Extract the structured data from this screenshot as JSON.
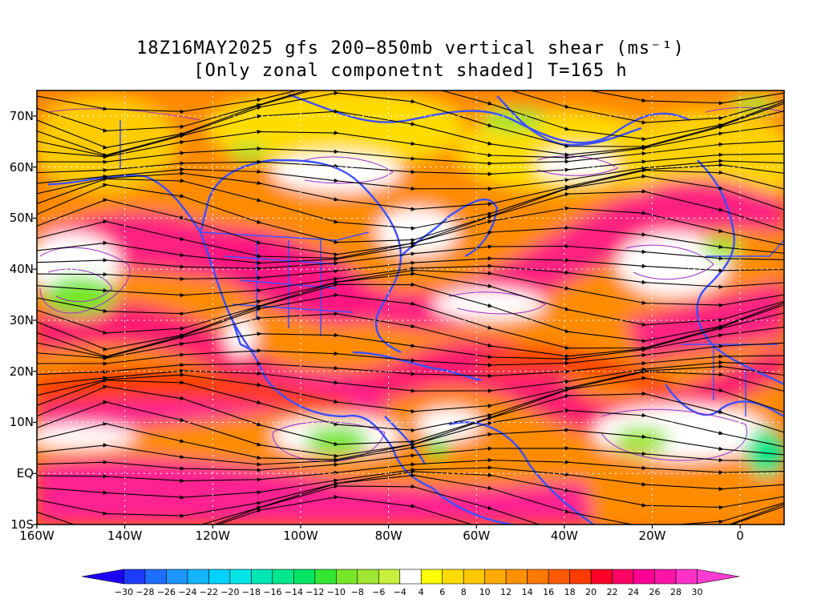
{
  "title": {
    "line1": "18Z16MAY2025 gfs 200−850mb vertical shear (ms⁻¹)",
    "line2": "[Only zonal componetnt shaded] T=165 h"
  },
  "axes": {
    "lat_labels": [
      "70N",
      "60N",
      "50N",
      "40N",
      "30N",
      "20N",
      "10N",
      "EQ",
      "10S"
    ],
    "lat_values": [
      70,
      60,
      50,
      40,
      30,
      20,
      10,
      0,
      -10
    ],
    "lon_labels": [
      "160W",
      "140W",
      "120W",
      "100W",
      "80W",
      "60W",
      "40W",
      "20W",
      "0"
    ],
    "lon_values": [
      -160,
      -140,
      -120,
      -100,
      -80,
      -60,
      -40,
      -20,
      0
    ],
    "lat_range": [
      -10,
      75
    ],
    "lon_range": [
      -160,
      10
    ]
  },
  "colorbar": {
    "labels": [
      "−30",
      "−28",
      "−26",
      "−24",
      "−22",
      "−20",
      "−18",
      "−16",
      "−14",
      "−12",
      "−10",
      "−8",
      "−6",
      "−4",
      "4",
      "6",
      "8",
      "10",
      "12",
      "14",
      "16",
      "18",
      "20",
      "22",
      "24",
      "26",
      "28",
      "30"
    ],
    "colors": [
      "#1e00ff",
      "#1e3cff",
      "#1e6eff",
      "#1e96ff",
      "#14b4ff",
      "#00d2ff",
      "#00e6e6",
      "#00e6b4",
      "#00e68c",
      "#00e664",
      "#32e632",
      "#78e628",
      "#a0e632",
      "#c8f03c",
      "#ffffff",
      "#ffff00",
      "#ffdc00",
      "#ffc800",
      "#ffaa00",
      "#ff9100",
      "#ff7800",
      "#ff5a00",
      "#ff3c00",
      "#ff0028",
      "#ff0064",
      "#ff0096",
      "#ff14aa",
      "#ff32c8",
      "#ff3cd2"
    ]
  }
}
